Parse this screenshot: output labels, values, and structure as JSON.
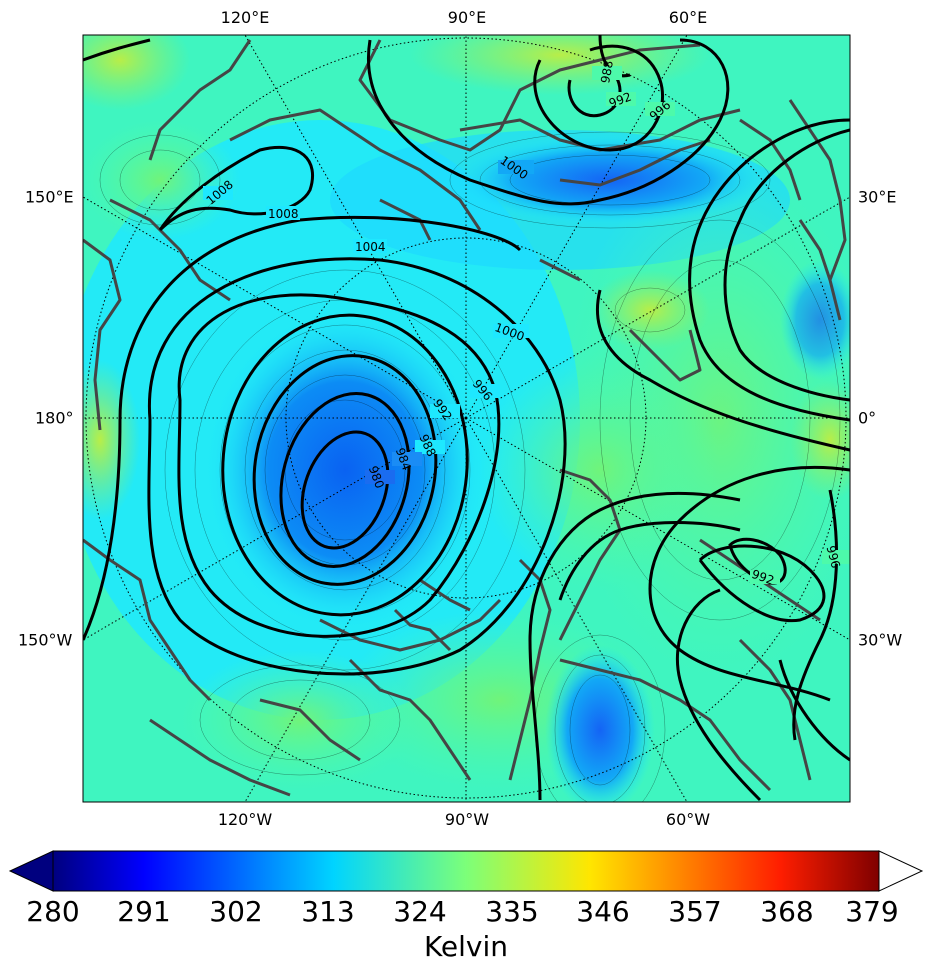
{
  "map": {
    "lon_labels_top": [
      "120°E",
      "90°E",
      "60°E"
    ],
    "lon_labels_bottom": [
      "120°W",
      "90°W",
      "60°W"
    ],
    "lat_labels_left": [
      "150°E",
      "180°",
      "150°W"
    ],
    "lat_labels_right": [
      "30°E",
      "0°",
      "30°W"
    ],
    "pressure_contour_labels": [
      "1008",
      "1008",
      "1004",
      "1000",
      "996",
      "992",
      "988",
      "984",
      "980",
      "1000",
      "992",
      "996",
      "988",
      "992",
      "996"
    ]
  },
  "colorbar": {
    "ticks": [
      "280",
      "291",
      "302",
      "313",
      "324",
      "335",
      "346",
      "357",
      "368",
      "379"
    ],
    "unit_label": "Kelvin",
    "range": [
      280,
      379
    ],
    "colormap": "jet"
  },
  "colors": {
    "coastline": "#454545",
    "isobar": "#000000",
    "field_dark": "#0a5cf0",
    "field_mid": "#1ee8ff",
    "field_green": "#4dfaaa",
    "field_yellowgreen": "#a4f050"
  }
}
